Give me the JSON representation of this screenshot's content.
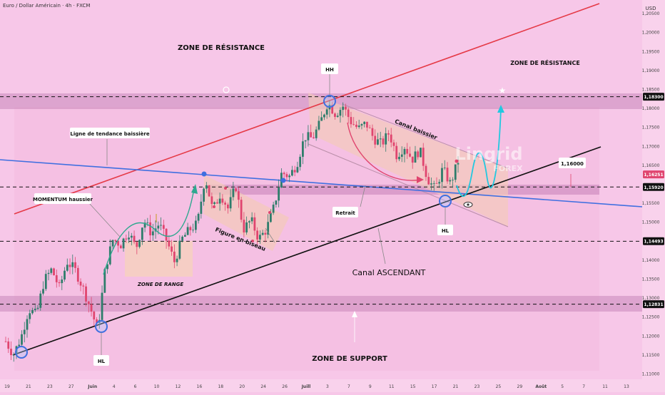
{
  "header": {
    "symbol_title": "Euro / Dollar Américain · 4h · FXCM",
    "currency": "USD"
  },
  "brand": {
    "name_top": "Lingrid",
    "name_bottom": "FOREX"
  },
  "colors": {
    "background": "#f7c7e8",
    "up_candle": "#2e7d6b",
    "down_candle": "#e0456f",
    "resistance_line": "#e53946",
    "blue_trendline": "#3f6fe0",
    "black_trendline": "#111111",
    "zone_band": "#c986ba",
    "teal_arrow": "#2fb8b8",
    "projection": "#22c8e0"
  },
  "chart_data": {
    "type": "candlestick",
    "symbol": "Euro / Dollar Américain",
    "timeframe": "4h",
    "source": "FXCM",
    "y_range": [
      1.1085,
      1.2085
    ],
    "y_ticks": [
      "1,20500",
      "1,20000",
      "1,19500",
      "1,19000",
      "1,18500",
      "1,18000",
      "1,17500",
      "1,17000",
      "1,16500",
      "1,15500",
      "1,15000",
      "1,14000",
      "1,13500",
      "1,13000",
      "1,12500",
      "1,12000",
      "1,11500",
      "1,11000"
    ],
    "price_badges": [
      {
        "value": "1,18300",
        "style": "key"
      },
      {
        "value": "1,16251",
        "style": "current"
      },
      {
        "value": "1,15920",
        "style": "key"
      },
      {
        "value": "1,14493",
        "style": "key"
      },
      {
        "value": "1,12831",
        "style": "key"
      }
    ],
    "x_ticks": [
      "19",
      "21",
      "23",
      "27",
      "Juin",
      "4",
      "6",
      "10",
      "12",
      "16",
      "18",
      "20",
      "24",
      "26",
      "Juill",
      "3",
      "7",
      "9",
      "11",
      "15",
      "17",
      "21",
      "23",
      "25",
      "29",
      "Août",
      "5",
      "7",
      "11",
      "13"
    ],
    "price_path": [
      1.1185,
      1.115,
      1.1195,
      1.127,
      1.1255,
      1.1345,
      1.1375,
      1.1325,
      1.1395,
      1.1375,
      1.133,
      1.1275,
      1.1215,
      1.138,
      1.1455,
      1.144,
      1.1475,
      1.143,
      1.1505,
      1.147,
      1.1495,
      1.145,
      1.1395,
      1.1455,
      1.148,
      1.1495,
      1.162,
      1.153,
      1.1575,
      1.1535,
      1.1595,
      1.148,
      1.1505,
      1.1455,
      1.148,
      1.154,
      1.163,
      1.162,
      1.1655,
      1.1725,
      1.172,
      1.176,
      1.1815,
      1.1785,
      1.1805,
      1.1765,
      1.1745,
      1.176,
      1.172,
      1.1705,
      1.1735,
      1.1675,
      1.17,
      1.1665,
      1.169,
      1.1615,
      1.1585,
      1.164,
      1.16,
      1.166
    ],
    "levels": [
      {
        "price": 1.183,
        "label": "1,18300"
      },
      {
        "price": 1.1592,
        "label": "1,15920"
      },
      {
        "price": 1.1449,
        "label": "1,14493"
      },
      {
        "price": 1.1283,
        "label": "1,12831"
      }
    ],
    "annotations": {
      "zone_resistance_left": "ZONE DE RÉSISTANCE",
      "zone_resistance_right": "ZONE DE RÉSISTANCE",
      "zone_support": "ZONE DE SUPPORT",
      "zone_range": "ZONE DE RANGE",
      "figure_biseau": "Figure en biseau",
      "canal_baissier": "Canal baissier",
      "canal_ascendant": "Canal ASCENDANT",
      "ligne_tendance": "Ligne de tendance baissière",
      "momentum": "MOMENTUM haussier",
      "retrait": "Retrait",
      "hh": "HH",
      "hl_low": "HL",
      "hl_mid": "HL",
      "hl_right": "HL",
      "target_price": "1,16000"
    }
  }
}
